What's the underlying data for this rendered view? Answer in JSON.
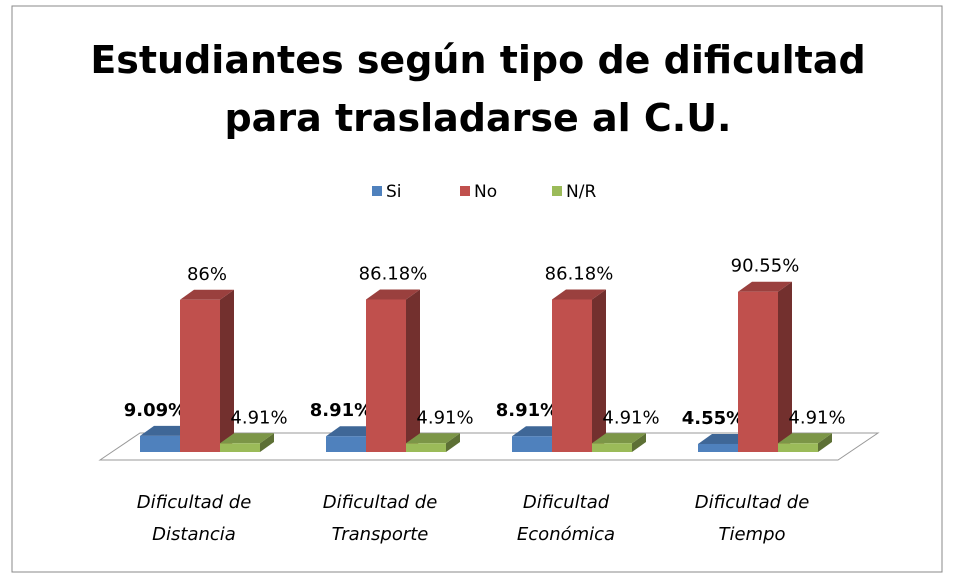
{
  "chart_data": {
    "type": "bar3d",
    "title": "Estudiantes según tipo de dificultad para trasladarse al C.U.",
    "categories": [
      "Dificultad de Distancia",
      "Dificultad de Transporte",
      "Dificultad Económica",
      "Dificultad de Tiempo"
    ],
    "series": [
      {
        "name": "Si",
        "color": "#4f81bd",
        "values": [
          9.09,
          8.91,
          8.91,
          4.55
        ],
        "value_labels": [
          "9.09%",
          "8.91%",
          "8.91%",
          "4.55%"
        ]
      },
      {
        "name": "No",
        "color": "#c0504d",
        "values": [
          86,
          86.18,
          86.18,
          90.55
        ],
        "value_labels": [
          "86%",
          "86.18%",
          "86.18%",
          "90.55%"
        ]
      },
      {
        "name": "N/R",
        "color": "#9bbb59",
        "values": [
          4.91,
          4.91,
          4.91,
          4.91
        ],
        "value_labels": [
          "4.91%",
          "4.91%",
          "4.91%",
          "4.91%"
        ]
      }
    ],
    "ylim": [
      0,
      100
    ],
    "legend": "top"
  }
}
